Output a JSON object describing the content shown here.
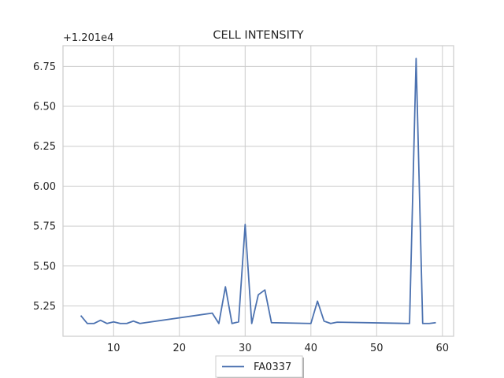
{
  "chart_data": {
    "type": "line",
    "title": "CELL INTENSITY",
    "xlabel": "",
    "ylabel": "",
    "y_offset_label": "+1.201e4",
    "xlim": [
      2.3,
      61.7
    ],
    "ylim": [
      5.06,
      6.88
    ],
    "x_ticks": [
      10,
      20,
      30,
      40,
      50,
      60
    ],
    "x_tick_labels": [
      "10",
      "20",
      "30",
      "40",
      "50",
      "60"
    ],
    "y_ticks": [
      5.25,
      5.5,
      5.75,
      6.0,
      6.25,
      6.5,
      6.75
    ],
    "y_tick_labels": [
      "5.25",
      "5.50",
      "5.75",
      "6.00",
      "6.25",
      "6.50",
      "6.75"
    ],
    "grid": true,
    "legend_position": "bottom-center",
    "line_color": "#4c72b0",
    "series": [
      {
        "name": "FA0337",
        "x": [
          5,
          6,
          7,
          8,
          9,
          10,
          11,
          12,
          13,
          14,
          25,
          26,
          27,
          28,
          29,
          30,
          31,
          32,
          33,
          34,
          40,
          41,
          42,
          43,
          44,
          55,
          56,
          57,
          58,
          59
        ],
        "y": [
          5.19,
          5.14,
          5.14,
          5.16,
          5.14,
          5.15,
          5.14,
          5.14,
          5.155,
          5.14,
          5.205,
          5.14,
          5.37,
          5.14,
          5.15,
          5.76,
          5.14,
          5.32,
          5.35,
          5.145,
          5.14,
          5.28,
          5.155,
          5.14,
          5.148,
          5.14,
          6.8,
          5.14,
          5.14,
          5.145
        ]
      }
    ]
  }
}
